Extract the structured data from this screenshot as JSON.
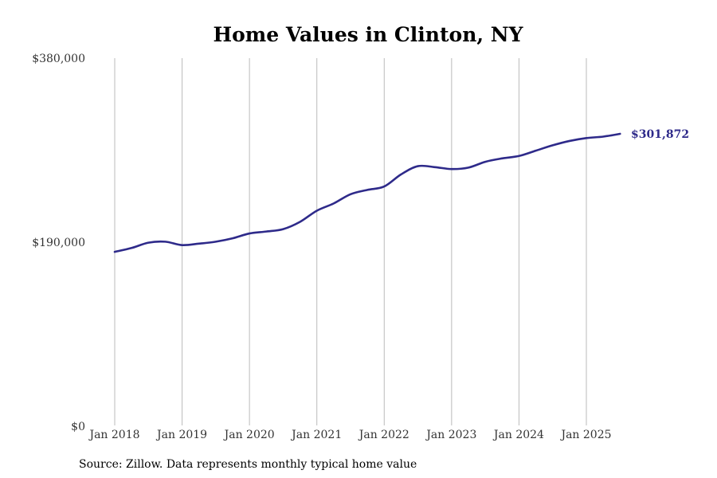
{
  "chart_data": {
    "type": "line",
    "title": "Home Values in Clinton, NY",
    "source": "Source: Zillow. Data represents monthly typical home value",
    "ylim": [
      0,
      380000
    ],
    "xlim": [
      "2018-01",
      "2025-07"
    ],
    "grid": "vertical",
    "line_color": "#2e2a8a",
    "y_ticks": [
      {
        "value": 0,
        "label": "$0"
      },
      {
        "value": 190000,
        "label": "$190,000"
      },
      {
        "value": 380000,
        "label": "$380,000"
      }
    ],
    "x_ticks": [
      {
        "value": "2018-01",
        "label": "Jan 2018"
      },
      {
        "value": "2019-01",
        "label": "Jan 2019"
      },
      {
        "value": "2020-01",
        "label": "Jan 2020"
      },
      {
        "value": "2021-01",
        "label": "Jan 2021"
      },
      {
        "value": "2022-01",
        "label": "Jan 2022"
      },
      {
        "value": "2023-01",
        "label": "Jan 2023"
      },
      {
        "value": "2024-01",
        "label": "Jan 2024"
      },
      {
        "value": "2025-01",
        "label": "Jan 2025"
      }
    ],
    "end_label": "$301,872",
    "series": [
      {
        "values": [
          {
            "x": "2018-01",
            "y": 180000
          },
          {
            "x": "2018-04",
            "y": 184000
          },
          {
            "x": "2018-07",
            "y": 189500
          },
          {
            "x": "2018-10",
            "y": 190500
          },
          {
            "x": "2019-01",
            "y": 187000
          },
          {
            "x": "2019-04",
            "y": 188500
          },
          {
            "x": "2019-07",
            "y": 190500
          },
          {
            "x": "2019-10",
            "y": 194000
          },
          {
            "x": "2020-01",
            "y": 199000
          },
          {
            "x": "2020-04",
            "y": 201000
          },
          {
            "x": "2020-07",
            "y": 203500
          },
          {
            "x": "2020-10",
            "y": 211000
          },
          {
            "x": "2021-01",
            "y": 222500
          },
          {
            "x": "2021-04",
            "y": 230000
          },
          {
            "x": "2021-07",
            "y": 239500
          },
          {
            "x": "2021-10",
            "y": 244000
          },
          {
            "x": "2022-01",
            "y": 247500
          },
          {
            "x": "2022-04",
            "y": 260000
          },
          {
            "x": "2022-07",
            "y": 268500
          },
          {
            "x": "2022-10",
            "y": 267500
          },
          {
            "x": "2023-01",
            "y": 265500
          },
          {
            "x": "2023-04",
            "y": 267000
          },
          {
            "x": "2023-07",
            "y": 273000
          },
          {
            "x": "2023-10",
            "y": 276500
          },
          {
            "x": "2024-01",
            "y": 279000
          },
          {
            "x": "2024-04",
            "y": 284500
          },
          {
            "x": "2024-07",
            "y": 290000
          },
          {
            "x": "2024-10",
            "y": 294500
          },
          {
            "x": "2025-01",
            "y": 297500
          },
          {
            "x": "2025-04",
            "y": 299000
          },
          {
            "x": "2025-07",
            "y": 301872
          }
        ]
      }
    ]
  }
}
